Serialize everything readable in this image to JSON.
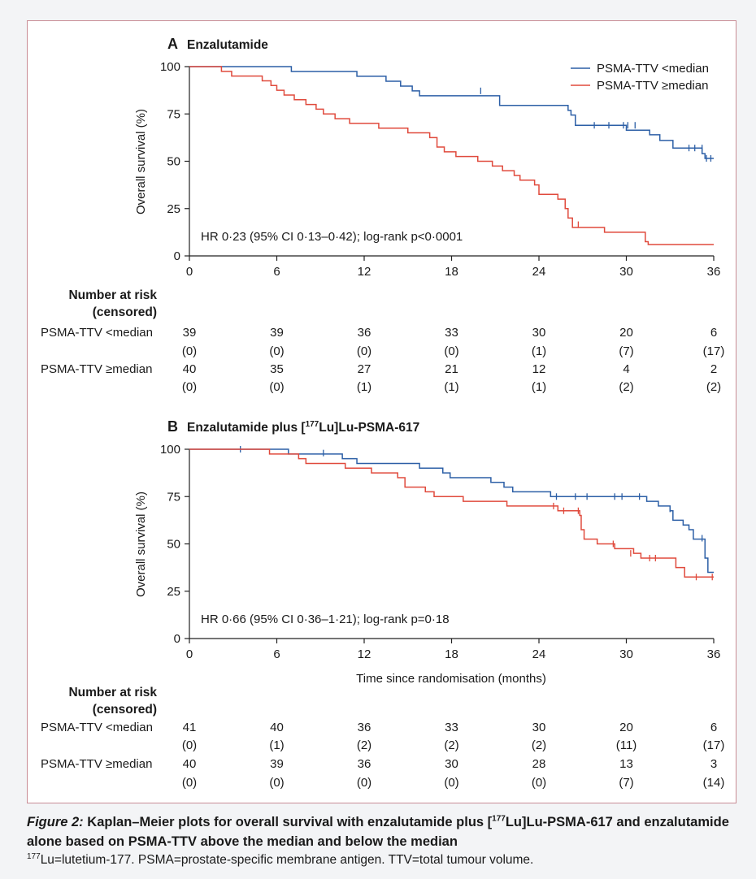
{
  "figure": {
    "label": "Figure 2:",
    "title_before": " Kaplan–Meier plots for overall survival with enzalutamide plus [",
    "title_sup": "177",
    "title_after": "Lu]Lu-PSMA-617 and enzalutamide alone based on PSMA-TTV above the median and below the median",
    "footnote_sup": "177",
    "footnote_text": "Lu=lutetium-177. PSMA=prostate-specific membrane antigen. TTV=total tumour volume."
  },
  "risk_header": [
    "Number at risk",
    "(censored)"
  ],
  "chart_data": [
    {
      "type": "line",
      "panel_letter": "A",
      "title": "Enzalutamide",
      "ylabel": "Overall survival (%)",
      "xlabel": "",
      "xlim": [
        0,
        36
      ],
      "ylim": [
        0,
        100
      ],
      "x_ticks": [
        0,
        6,
        12,
        18,
        24,
        30,
        36
      ],
      "y_ticks": [
        0,
        25,
        50,
        75,
        100
      ],
      "legend_position": "top-right",
      "annotation": "HR 0·23 (95% CI 0·13–0·42); log-rank p<0·0001",
      "series": [
        {
          "name": "PSMA-TTV <median",
          "color": "#2c5fa6",
          "steps": [
            [
              0,
              100
            ],
            [
              7,
              97.4
            ],
            [
              11.5,
              94.9
            ],
            [
              13.5,
              92.3
            ],
            [
              14.5,
              89.7
            ],
            [
              15.3,
              87.2
            ],
            [
              15.8,
              84.6
            ],
            [
              21.3,
              79.5
            ],
            [
              26,
              76.9
            ],
            [
              26.2,
              74.4
            ],
            [
              26.5,
              69
            ],
            [
              30,
              66.4
            ],
            [
              31.6,
              64
            ],
            [
              32.3,
              61
            ],
            [
              33.2,
              57
            ],
            [
              35.2,
              54
            ],
            [
              35.4,
              51.5
            ],
            [
              36,
              51.5
            ]
          ],
          "censor_marks": [
            [
              20,
              87.2
            ],
            [
              26.5,
              72
            ],
            [
              27.8,
              69
            ],
            [
              28.8,
              69
            ],
            [
              29.8,
              69
            ],
            [
              30.1,
              69
            ],
            [
              30.6,
              69
            ],
            [
              34.3,
              57
            ],
            [
              34.7,
              57
            ],
            [
              35.2,
              57
            ],
            [
              35.5,
              51.5
            ],
            [
              35.8,
              51.5
            ]
          ]
        },
        {
          "name": "PSMA-TTV ≥median",
          "color": "#e04a3c",
          "steps": [
            [
              0,
              100
            ],
            [
              2.2,
              97.5
            ],
            [
              2.9,
              95
            ],
            [
              5,
              92.5
            ],
            [
              5.6,
              90
            ],
            [
              6,
              87.5
            ],
            [
              6.5,
              85
            ],
            [
              7.2,
              82.5
            ],
            [
              8,
              80
            ],
            [
              8.7,
              77.5
            ],
            [
              9.2,
              75
            ],
            [
              10,
              72.5
            ],
            [
              11,
              70
            ],
            [
              13,
              67.5
            ],
            [
              15,
              65
            ],
            [
              16.5,
              62.5
            ],
            [
              17,
              57.5
            ],
            [
              17.5,
              55
            ],
            [
              18.3,
              52.5
            ],
            [
              19.8,
              50
            ],
            [
              20.8,
              47.5
            ],
            [
              21.5,
              45
            ],
            [
              22.3,
              42.5
            ],
            [
              22.7,
              40
            ],
            [
              23.7,
              37.5
            ],
            [
              24,
              32.5
            ],
            [
              25.3,
              30
            ],
            [
              25.8,
              25
            ],
            [
              26,
              20
            ],
            [
              26.3,
              15
            ],
            [
              28.5,
              12.5
            ],
            [
              31.3,
              7.5
            ],
            [
              31.5,
              6
            ],
            [
              36,
              6
            ]
          ],
          "censor_marks": [
            [
              26.7,
              16.5
            ]
          ]
        }
      ],
      "risk_table": {
        "times": [
          0,
          6,
          12,
          18,
          24,
          30,
          36
        ],
        "rows": [
          {
            "label": "PSMA-TTV <median",
            "at_risk": [
              "39",
              "39",
              "36",
              "33",
              "30",
              "20",
              "6"
            ],
            "censored": [
              "(0)",
              "(0)",
              "(0)",
              "(0)",
              "(1)",
              "(7)",
              "(17)"
            ]
          },
          {
            "label": "PSMA-TTV ≥median",
            "at_risk": [
              "40",
              "35",
              "27",
              "21",
              "12",
              "4",
              "2"
            ],
            "censored": [
              "(0)",
              "(0)",
              "(1)",
              "(1)",
              "(1)",
              "(2)",
              "(2)"
            ]
          }
        ]
      }
    },
    {
      "type": "line",
      "panel_letter": "B",
      "title_before": "Enzalutamide plus [",
      "title_sup": "177",
      "title_after": "Lu]Lu-PSMA-617",
      "ylabel": "Overall survival (%)",
      "xlabel": "Time since randomisation (months)",
      "xlim": [
        0,
        36
      ],
      "ylim": [
        0,
        100
      ],
      "x_ticks": [
        0,
        6,
        12,
        18,
        24,
        30,
        36
      ],
      "y_ticks": [
        0,
        25,
        50,
        75,
        100
      ],
      "annotation": "HR 0·66 (95% CI 0·36–1·21); log-rank p=0·18",
      "series": [
        {
          "name": "PSMA-TTV <median",
          "color": "#2c5fa6",
          "steps": [
            [
              0,
              100
            ],
            [
              6.8,
              97.5
            ],
            [
              10.5,
              95
            ],
            [
              11.5,
              92.5
            ],
            [
              15.8,
              90
            ],
            [
              17.4,
              87.5
            ],
            [
              17.9,
              85
            ],
            [
              20.7,
              82.5
            ],
            [
              21.6,
              80
            ],
            [
              22.2,
              77.5
            ],
            [
              24.8,
              75
            ],
            [
              31.4,
              72.5
            ],
            [
              32.2,
              70
            ],
            [
              33,
              67.5
            ],
            [
              33.2,
              62.5
            ],
            [
              33.9,
              60
            ],
            [
              34.3,
              57.5
            ],
            [
              34.6,
              52.5
            ],
            [
              35.4,
              42.5
            ],
            [
              35.6,
              35
            ],
            [
              36,
              35
            ]
          ],
          "censor_marks": [
            [
              3.5,
              100
            ],
            [
              9.2,
              98
            ],
            [
              25.2,
              75
            ],
            [
              26.5,
              75
            ],
            [
              27.3,
              75
            ],
            [
              29.2,
              75
            ],
            [
              29.7,
              75
            ],
            [
              30.9,
              75
            ],
            [
              33,
              68.5
            ],
            [
              35.2,
              53
            ]
          ]
        },
        {
          "name": "PSMA-TTV ≥median",
          "color": "#e04a3c",
          "steps": [
            [
              0,
              100
            ],
            [
              5.5,
              97.5
            ],
            [
              7.5,
              95
            ],
            [
              8,
              92.5
            ],
            [
              10.7,
              90
            ],
            [
              12.5,
              87.5
            ],
            [
              14.3,
              85
            ],
            [
              14.8,
              80
            ],
            [
              16.2,
              77.5
            ],
            [
              16.8,
              75
            ],
            [
              18.8,
              72.5
            ],
            [
              21.8,
              70
            ],
            [
              25.3,
              67.5
            ],
            [
              26.8,
              65
            ],
            [
              26.9,
              57.5
            ],
            [
              27.1,
              52.5
            ],
            [
              28,
              50
            ],
            [
              29.2,
              47.5
            ],
            [
              30.5,
              45
            ],
            [
              31,
              42.5
            ],
            [
              33.4,
              37.5
            ],
            [
              34,
              32.5
            ],
            [
              36,
              32.5
            ]
          ],
          "censor_marks": [
            [
              25,
              70
            ],
            [
              25.7,
              67.5
            ],
            [
              26.7,
              67.5
            ],
            [
              29.1,
              50
            ],
            [
              30.3,
              45
            ],
            [
              31.6,
              42.5
            ],
            [
              32,
              42.5
            ],
            [
              34.8,
              32.5
            ],
            [
              35.9,
              32.5
            ]
          ]
        }
      ],
      "risk_table": {
        "times": [
          0,
          6,
          12,
          18,
          24,
          30,
          36
        ],
        "rows": [
          {
            "label": "PSMA-TTV <median",
            "at_risk": [
              "41",
              "40",
              "36",
              "33",
              "30",
              "20",
              "6"
            ],
            "censored": [
              "(0)",
              "(1)",
              "(2)",
              "(2)",
              "(2)",
              "(11)",
              "(17)"
            ]
          },
          {
            "label": "PSMA-TTV ≥median",
            "at_risk": [
              "40",
              "39",
              "36",
              "30",
              "28",
              "13",
              "3"
            ],
            "censored": [
              "(0)",
              "(0)",
              "(0)",
              "(0)",
              "(0)",
              "(7)",
              "(14)"
            ]
          }
        ]
      }
    }
  ]
}
